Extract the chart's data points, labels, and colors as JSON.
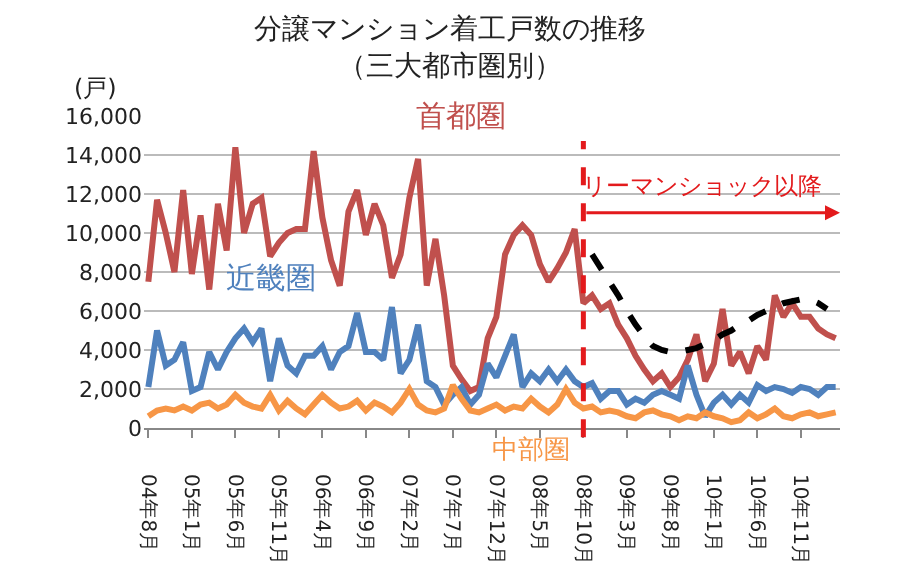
{
  "chart_data": {
    "type": "line",
    "title": "分譲マンション着工戸数の推移",
    "subtitle": "（三大都市圏別）",
    "ylabel": "(戸)",
    "categories": [
      "04年8月",
      null,
      null,
      null,
      null,
      "05年1月",
      null,
      null,
      null,
      null,
      "05年6月",
      null,
      null,
      null,
      null,
      "05年11月",
      null,
      null,
      null,
      null,
      "06年4月",
      null,
      null,
      null,
      null,
      "06年9月",
      null,
      null,
      null,
      null,
      "07年2月",
      null,
      null,
      null,
      null,
      "07年7月",
      null,
      null,
      null,
      null,
      "07年12月",
      null,
      null,
      null,
      null,
      "08年5月",
      null,
      null,
      null,
      null,
      "08年10月",
      null,
      null,
      null,
      null,
      "09年3月",
      null,
      null,
      null,
      null,
      "09年8月",
      null,
      null,
      null,
      null,
      "10年1月",
      null,
      null,
      null,
      null,
      "10年6月",
      null,
      null,
      null,
      null,
      "10年11月",
      null,
      null,
      null,
      null
    ],
    "series": [
      {
        "name": "首都圏",
        "color": "#c0504d",
        "values": [
          7500,
          11700,
          10000,
          8000,
          12200,
          7900,
          10900,
          7100,
          11500,
          9100,
          14400,
          10000,
          11500,
          11800,
          8800,
          9500,
          10000,
          10200,
          10200,
          14200,
          10800,
          8600,
          7300,
          11100,
          12200,
          9900,
          11500,
          10400,
          7700,
          8900,
          11800,
          13800,
          7300,
          9700,
          6800,
          3200,
          2500,
          1900,
          2100,
          4600,
          5700,
          8900,
          9900,
          10400,
          9900,
          8400,
          7500,
          8200,
          9000,
          10200,
          6400,
          6800,
          6100,
          6400,
          5300,
          4600,
          3700,
          3000,
          2400,
          2800,
          2100,
          2600,
          3500,
          4800,
          2400,
          3300,
          6100,
          3200,
          3900,
          2800,
          4200,
          3500,
          6800,
          5700,
          6400,
          5700,
          5700,
          5100,
          4800,
          4600
        ]
      },
      {
        "name": "近畿圏",
        "color": "#4f81bd",
        "values": [
          2100,
          5000,
          3200,
          3500,
          4400,
          1900,
          2100,
          3900,
          3000,
          3900,
          4600,
          5100,
          4400,
          5100,
          2400,
          4600,
          3200,
          2800,
          3700,
          3700,
          4200,
          3000,
          3900,
          4200,
          5900,
          3900,
          3900,
          3500,
          6200,
          2800,
          3500,
          5300,
          2400,
          2100,
          1200,
          1700,
          2100,
          1200,
          1700,
          3300,
          2600,
          3700,
          4800,
          2100,
          2800,
          2400,
          3000,
          2400,
          3000,
          2400,
          2100,
          2300,
          1500,
          1900,
          1900,
          1200,
          1500,
          1300,
          1700,
          1900,
          1700,
          1500,
          3200,
          1700,
          600,
          1300,
          1700,
          1200,
          1700,
          1300,
          2200,
          1900,
          2100,
          2000,
          1800,
          2100,
          2000,
          1700,
          2100,
          2100
        ]
      },
      {
        "name": "中部圏",
        "color": "#f79646",
        "values": [
          600,
          900,
          1000,
          900,
          1100,
          900,
          1200,
          1300,
          1000,
          1200,
          1700,
          1300,
          1100,
          1000,
          1700,
          900,
          1400,
          1000,
          700,
          1200,
          1700,
          1300,
          1000,
          1100,
          1400,
          900,
          1300,
          1100,
          800,
          1300,
          2000,
          1200,
          900,
          800,
          1000,
          2200,
          1500,
          900,
          800,
          1000,
          1200,
          900,
          1100,
          1000,
          1500,
          1100,
          800,
          1200,
          2000,
          1300,
          1000,
          1100,
          800,
          900,
          800,
          600,
          500,
          800,
          900,
          700,
          600,
          400,
          600,
          500,
          800,
          600,
          500,
          300,
          400,
          800,
          500,
          700,
          1000,
          600,
          500,
          700,
          800,
          600,
          700,
          800
        ]
      },
      {
        "color": "#000000",
        "line_style": "dashed",
        "values": [
          null,
          null,
          null,
          null,
          null,
          null,
          null,
          null,
          null,
          null,
          null,
          null,
          null,
          null,
          null,
          null,
          null,
          null,
          null,
          null,
          null,
          null,
          null,
          null,
          null,
          null,
          null,
          null,
          null,
          null,
          null,
          null,
          null,
          null,
          null,
          null,
          null,
          null,
          null,
          null,
          null,
          null,
          null,
          null,
          null,
          null,
          null,
          null,
          null,
          null,
          null,
          8900,
          8200,
          7500,
          6800,
          6000,
          5300,
          4700,
          4200,
          4000,
          3900,
          3900,
          4000,
          4100,
          4300,
          4500,
          4800,
          5000,
          5300,
          5500,
          5800,
          6000,
          6200,
          6400,
          6500,
          6600,
          6600,
          6400,
          6100,
          null
        ]
      }
    ],
    "ylim": [
      0,
      16000
    ],
    "yticks": [
      {
        "value": 0,
        "label": "0"
      },
      {
        "value": 2000,
        "label": "2,000"
      },
      {
        "value": 4000,
        "label": "4,000"
      },
      {
        "value": 6000,
        "label": "6,000"
      },
      {
        "value": 8000,
        "label": "8,000"
      },
      {
        "value": 10000,
        "label": "10,000"
      },
      {
        "value": 12000,
        "label": "12,000"
      },
      {
        "value": 14000,
        "label": "14,000"
      },
      {
        "value": 16000,
        "label": "16,000"
      }
    ],
    "ref_lines": [
      {
        "axis": "x",
        "value": "08年10月",
        "label": "リーマンショック以降",
        "color": "#e31a1c",
        "line_style": "dashed"
      }
    ],
    "grid": "y",
    "legend": false,
    "line_style": "solid",
    "marker": "none"
  }
}
